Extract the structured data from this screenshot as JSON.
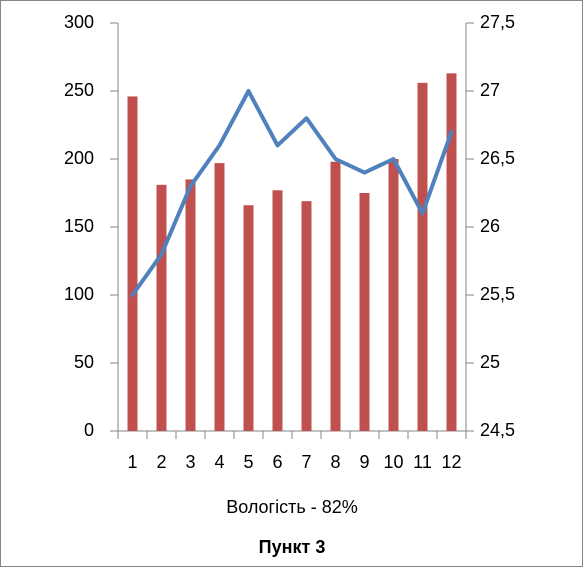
{
  "chart_data": {
    "type": "bar",
    "title": "Пункт 3",
    "x_label": "Вологість - 82%",
    "categories": [
      "1",
      "2",
      "3",
      "4",
      "5",
      "6",
      "7",
      "8",
      "9",
      "10",
      "11",
      "12"
    ],
    "series": [
      {
        "type": "bar",
        "color": "#c0504d",
        "values": [
          246,
          181,
          185,
          197,
          166,
          177,
          169,
          198,
          175,
          200,
          256,
          263
        ]
      },
      {
        "type": "line",
        "axis": "y2",
        "color": "#4f81bd",
        "values": [
          25.5,
          25.8,
          26.3,
          26.6,
          27.0,
          26.6,
          26.8,
          26.5,
          26.4,
          26.5,
          26.1,
          26.7
        ]
      }
    ],
    "ylim": [
      0,
      300
    ],
    "yticks": [
      0,
      50,
      100,
      150,
      200,
      250,
      300
    ],
    "y2lim": [
      24.5,
      27.5
    ],
    "y2ticks": [
      {
        "value": 24.5,
        "label": "24,5"
      },
      25,
      {
        "value": 25.5,
        "label": "25,5"
      },
      26,
      {
        "value": 26.5,
        "label": "26,5"
      },
      27,
      {
        "value": 27.5,
        "label": "27,5"
      }
    ],
    "grid": false
  }
}
